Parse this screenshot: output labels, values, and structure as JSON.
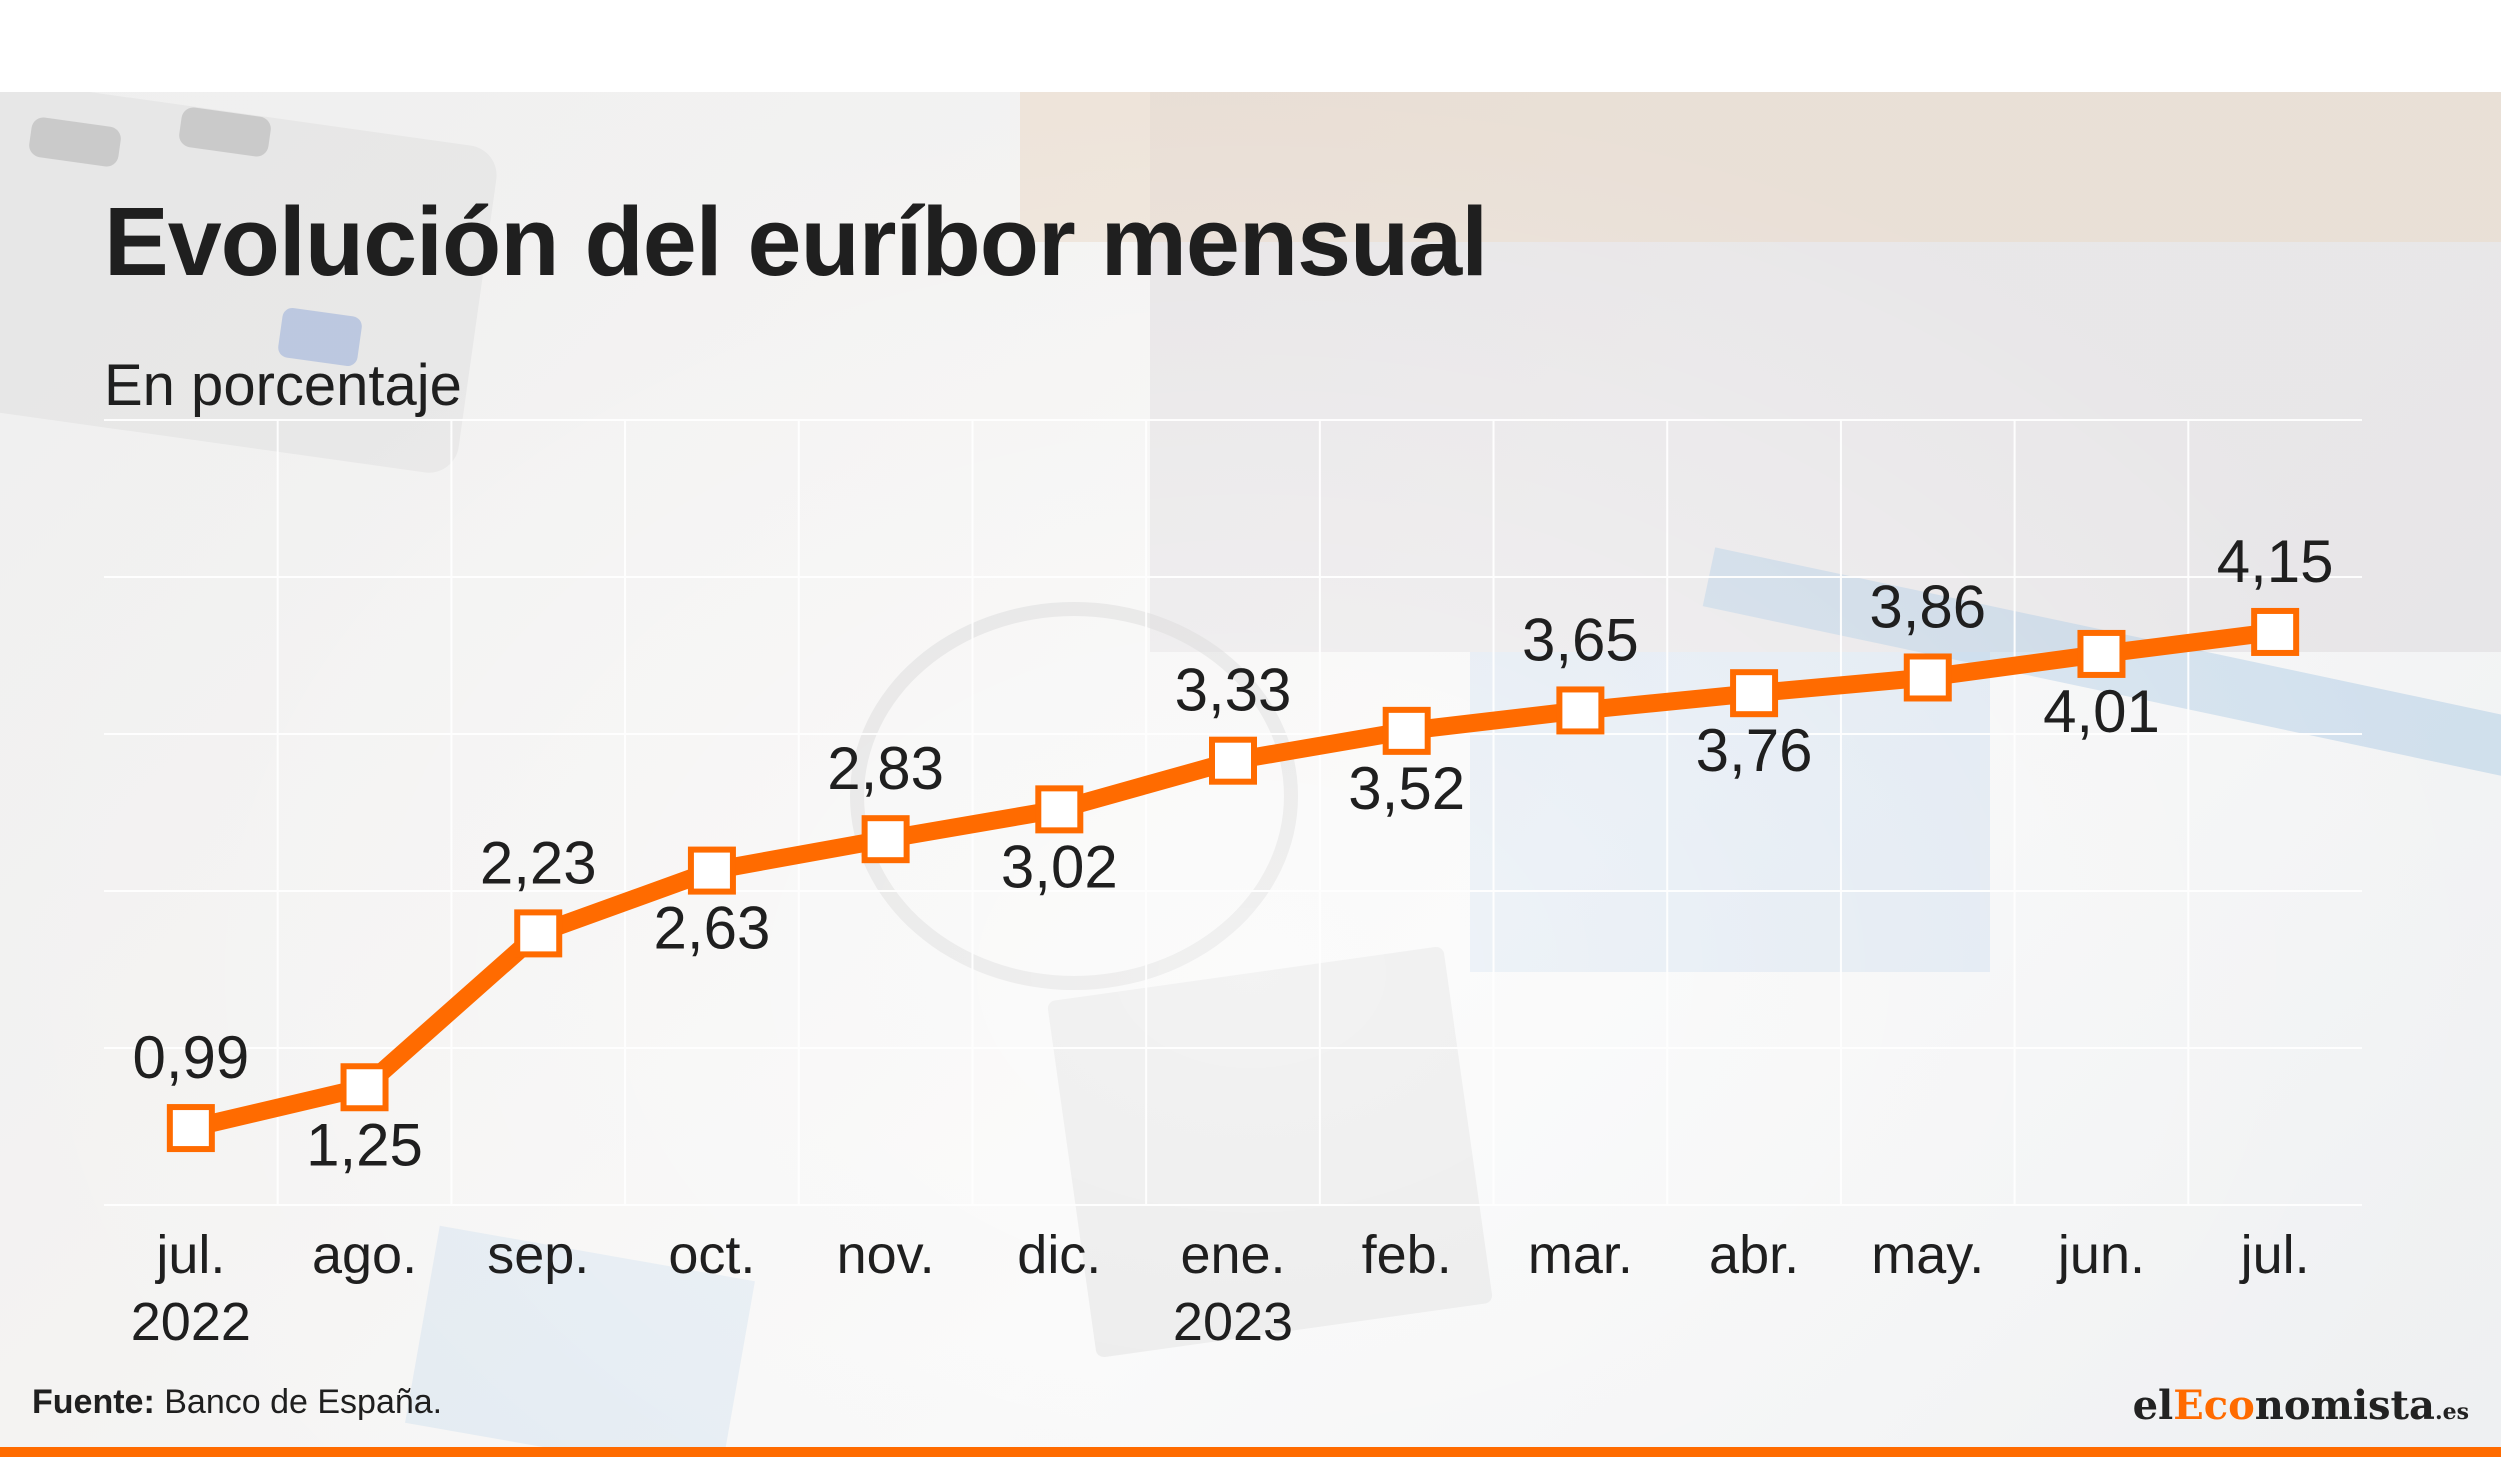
{
  "title": "Evolución del euríbor mensual",
  "subtitle": "En porcentaje",
  "source_label": "Fuente:",
  "source_text": "Banco de España.",
  "logo": {
    "el": "el",
    "accent": "Eco",
    "rest": "nomista",
    "tld": ".es"
  },
  "colors": {
    "line": "#ff6b00",
    "marker_fill": "#ffffff",
    "text": "#1f1f1f",
    "grid": "#ffffff"
  },
  "chart_data": {
    "type": "line",
    "title": "Evolución del euríbor mensual",
    "subtitle": "En porcentaje",
    "categories": [
      "jul. 2022",
      "ago.",
      "sep.",
      "oct.",
      "nov.",
      "dic.",
      "ene. 2023",
      "feb.",
      "mar.",
      "abr.",
      "may.",
      "jun.",
      "jul."
    ],
    "tick_labels": [
      [
        "jul.",
        "2022"
      ],
      [
        "ago."
      ],
      [
        "sep."
      ],
      [
        "oct."
      ],
      [
        "nov."
      ],
      [
        "dic."
      ],
      [
        "ene.",
        "2023"
      ],
      [
        "feb."
      ],
      [
        "mar."
      ],
      [
        "abr."
      ],
      [
        "may."
      ],
      [
        "jun."
      ],
      [
        "jul."
      ]
    ],
    "values": [
      0.99,
      1.25,
      2.23,
      2.63,
      2.83,
      3.02,
      3.33,
      3.52,
      3.65,
      3.76,
      3.86,
      4.01,
      4.15
    ],
    "value_labels": [
      "0,99",
      "1,25",
      "2,23",
      "2,63",
      "2,83",
      "3,02",
      "3,33",
      "3,52",
      "3,65",
      "3,76",
      "3,86",
      "4,01",
      "4,15"
    ],
    "label_positions": [
      "above",
      "below",
      "above",
      "below",
      "above",
      "below",
      "above",
      "below",
      "above",
      "below",
      "above",
      "below",
      "above"
    ],
    "ylim": [
      0.5,
      5.5
    ],
    "grid": true,
    "legend": false,
    "xlabel": "",
    "ylabel": ""
  }
}
